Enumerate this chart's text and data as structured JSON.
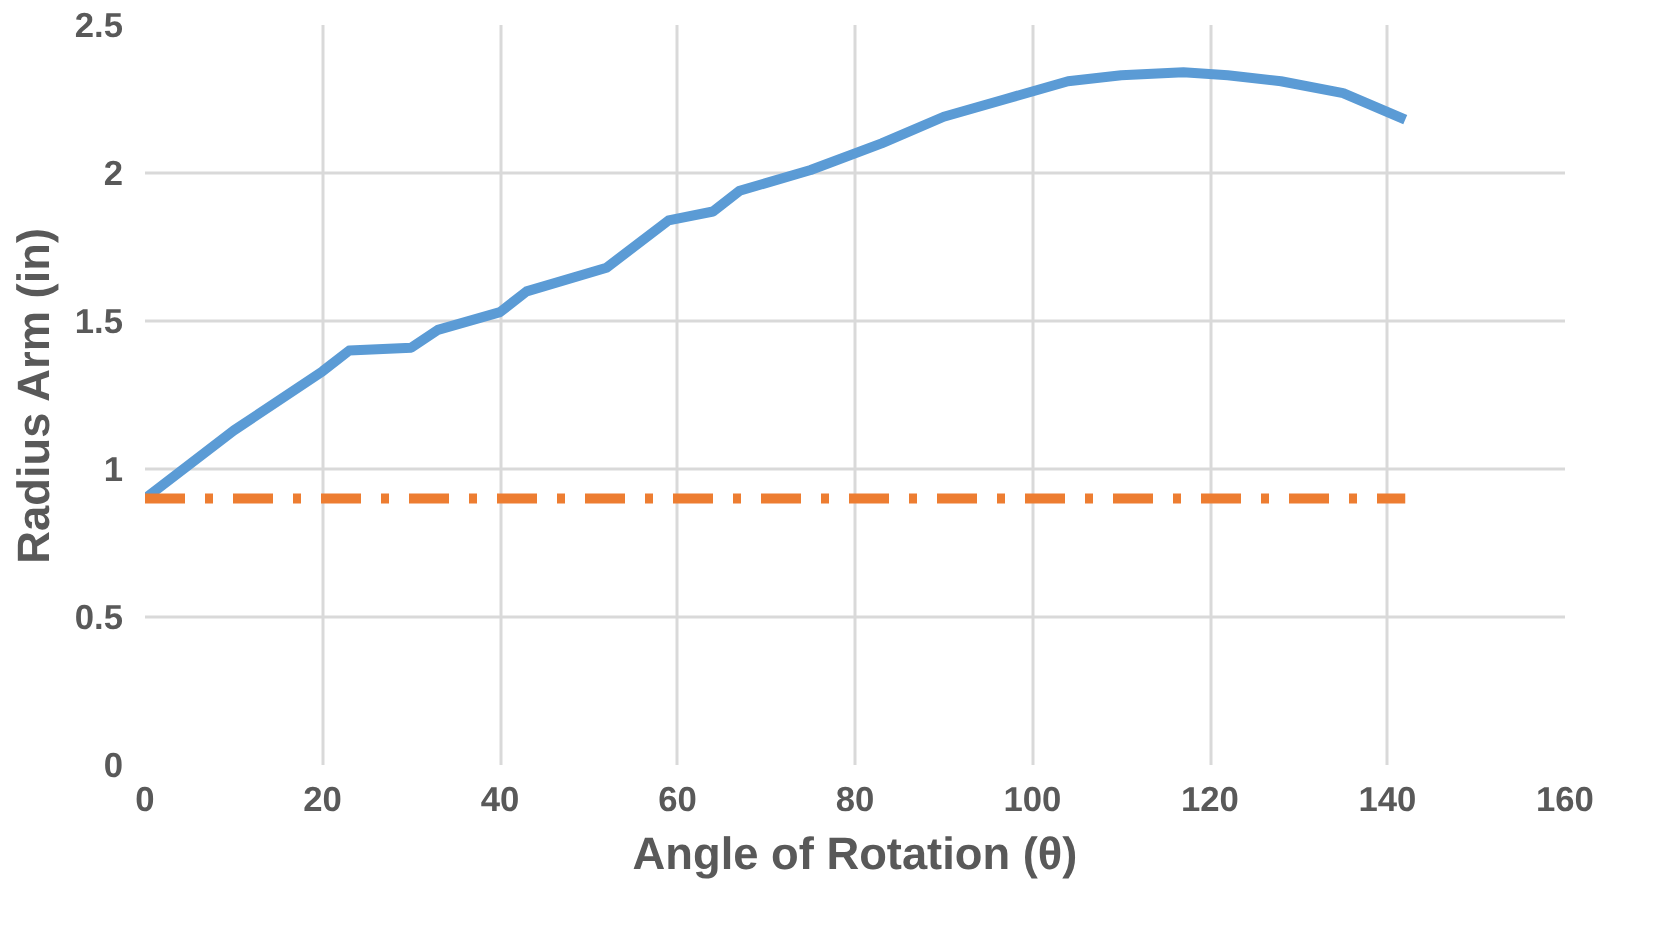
{
  "chart_data": {
    "type": "line",
    "xlabel": "Angle of Rotation (θ)",
    "ylabel": "Radius Arm (in)",
    "xlim": [
      0,
      160
    ],
    "xticks": [
      0,
      20,
      40,
      60,
      80,
      100,
      120,
      140,
      160
    ],
    "ylim": [
      0,
      2.5
    ],
    "yticks": [
      0,
      0.5,
      1,
      1.5,
      2,
      2.5
    ],
    "grid": true,
    "series": [
      {
        "color": "#5b9bd5",
        "line_style": "solid",
        "x": [
          0,
          10,
          20,
          23,
          30,
          33,
          40,
          43,
          52,
          59,
          64,
          67,
          75,
          83,
          90,
          97,
          104,
          110,
          117,
          122,
          128,
          135,
          142
        ],
        "values": [
          0.9,
          1.13,
          1.33,
          1.4,
          1.41,
          1.47,
          1.53,
          1.6,
          1.68,
          1.84,
          1.87,
          1.94,
          2.01,
          2.1,
          2.19,
          2.25,
          2.31,
          2.33,
          2.34,
          2.33,
          2.31,
          2.27,
          2.18
        ]
      },
      {
        "color": "#ed7d31",
        "line_style": "dashdot",
        "x": [
          0,
          142
        ],
        "values": [
          0.9,
          0.9
        ]
      }
    ]
  }
}
